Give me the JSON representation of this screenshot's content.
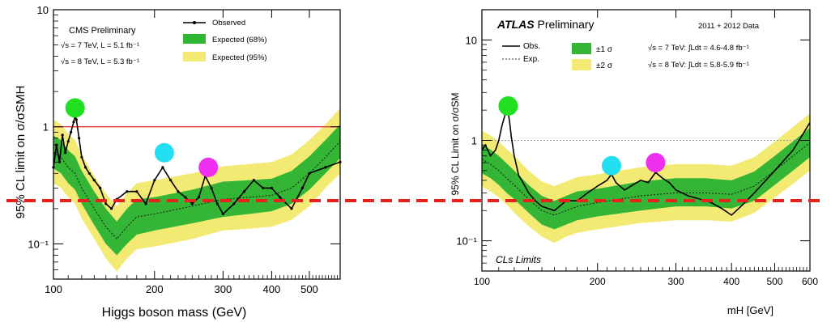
{
  "chart_data": [
    {
      "type": "line",
      "panel": "left",
      "header": "CMS Preliminary",
      "energy_lines": [
        "√s = 7 TeV, L = 5.1 fb⁻¹",
        "√s = 8 TeV, L = 5.3 fb⁻¹"
      ],
      "legend": [
        "Observed",
        "Expected (68%)",
        "Expected (95%)"
      ],
      "xlabel": "Higgs boson mass (GeV)",
      "ylabel": "95% CL limit on σ/σSMH",
      "x_scale": "log",
      "y_scale": "log",
      "xlim": [
        110,
        600
      ],
      "ylim": [
        0.05,
        10
      ],
      "x_ticks": [
        100,
        200,
        300,
        400,
        500
      ],
      "y_ticks": [
        {
          "v": 0.1,
          "label": "10⁻¹"
        },
        {
          "v": 1,
          "label": "1"
        },
        {
          "v": 10,
          "label": "10"
        }
      ],
      "reference_line": 1,
      "expected": {
        "x": [
          110,
          115,
          120,
          125,
          130,
          140,
          150,
          160,
          170,
          180,
          200,
          250,
          300,
          350,
          400,
          450,
          500,
          550,
          600
        ],
        "median": [
          0.6,
          0.55,
          0.45,
          0.4,
          0.3,
          0.2,
          0.14,
          0.11,
          0.14,
          0.17,
          0.18,
          0.21,
          0.24,
          0.25,
          0.26,
          0.3,
          0.4,
          0.55,
          0.75
        ],
        "lo1": [
          0.44,
          0.4,
          0.33,
          0.29,
          0.22,
          0.145,
          0.1,
          0.08,
          0.1,
          0.12,
          0.13,
          0.15,
          0.17,
          0.18,
          0.19,
          0.22,
          0.29,
          0.4,
          0.54
        ],
        "hi1": [
          0.84,
          0.77,
          0.63,
          0.56,
          0.42,
          0.28,
          0.2,
          0.155,
          0.2,
          0.24,
          0.25,
          0.29,
          0.34,
          0.35,
          0.36,
          0.42,
          0.56,
          0.77,
          1.05
        ],
        "lo2": [
          0.33,
          0.3,
          0.25,
          0.22,
          0.165,
          0.11,
          0.075,
          0.058,
          0.075,
          0.09,
          0.095,
          0.11,
          0.13,
          0.135,
          0.14,
          0.16,
          0.21,
          0.3,
          0.4
        ],
        "hi2": [
          1.15,
          1.05,
          0.87,
          0.77,
          0.58,
          0.38,
          0.27,
          0.21,
          0.27,
          0.33,
          0.35,
          0.4,
          0.46,
          0.48,
          0.5,
          0.58,
          0.77,
          1.05,
          1.45
        ]
      },
      "observed": {
        "x": [
          110,
          112,
          114,
          116,
          118,
          120,
          122,
          124,
          125,
          126,
          128,
          130,
          133,
          136,
          140,
          145,
          150,
          155,
          160,
          170,
          180,
          190,
          200,
          210,
          220,
          230,
          240,
          250,
          260,
          270,
          280,
          290,
          300,
          320,
          340,
          360,
          380,
          400,
          420,
          450,
          480,
          500,
          550,
          600
        ],
        "y": [
          0.45,
          0.7,
          0.5,
          0.85,
          0.6,
          0.75,
          0.9,
          1.1,
          1.25,
          1.15,
          0.8,
          0.55,
          0.45,
          0.4,
          0.35,
          0.3,
          0.22,
          0.2,
          0.24,
          0.28,
          0.28,
          0.22,
          0.35,
          0.45,
          0.35,
          0.28,
          0.25,
          0.22,
          0.25,
          0.38,
          0.3,
          0.22,
          0.18,
          0.22,
          0.28,
          0.35,
          0.3,
          0.3,
          0.25,
          0.2,
          0.3,
          0.4,
          0.45,
          0.5
        ]
      }
    },
    {
      "type": "line",
      "panel": "right",
      "header": "ATLAS Preliminary",
      "header_bold": "ATLAS",
      "header_rest": " Preliminary",
      "data_label": "2011 + 2012 Data",
      "energy_lines": [
        "√s = 7 TeV: ∫Ldt = 4.6-4.8 fb⁻¹",
        "√s = 8 TeV: ∫Ldt = 5.8-5.9 fb⁻¹"
      ],
      "legend": [
        "Obs.",
        "Exp.",
        "±1 σ",
        "±2 σ"
      ],
      "corner_label": "CLs Limits",
      "xlabel": "mH [GeV]",
      "ylabel": "95% CL Limit on σ/σSM",
      "x_scale": "log",
      "y_scale": "log",
      "xlim": [
        110,
        600
      ],
      "ylim": [
        0.05,
        20
      ],
      "x_ticks": [
        100,
        200,
        300,
        400,
        500,
        600
      ],
      "y_ticks": [
        {
          "v": 0.1,
          "label": "10⁻¹"
        },
        {
          "v": 1,
          "label": "1"
        },
        {
          "v": 10,
          "label": "10"
        }
      ],
      "reference_line": 1,
      "expected": {
        "x": [
          110,
          115,
          120,
          125,
          130,
          140,
          150,
          160,
          170,
          180,
          200,
          250,
          300,
          350,
          400,
          450,
          500,
          550,
          600
        ],
        "median": [
          0.65,
          0.58,
          0.5,
          0.42,
          0.36,
          0.26,
          0.2,
          0.18,
          0.2,
          0.22,
          0.24,
          0.28,
          0.3,
          0.3,
          0.29,
          0.35,
          0.5,
          0.7,
          0.95
        ],
        "lo1": [
          0.47,
          0.42,
          0.36,
          0.3,
          0.26,
          0.19,
          0.145,
          0.13,
          0.145,
          0.16,
          0.175,
          0.2,
          0.22,
          0.22,
          0.21,
          0.25,
          0.36,
          0.5,
          0.68
        ],
        "hi1": [
          0.9,
          0.81,
          0.7,
          0.59,
          0.5,
          0.36,
          0.28,
          0.25,
          0.28,
          0.31,
          0.33,
          0.39,
          0.42,
          0.42,
          0.4,
          0.49,
          0.7,
          0.98,
          1.33
        ],
        "lo2": [
          0.35,
          0.31,
          0.27,
          0.23,
          0.19,
          0.14,
          0.11,
          0.095,
          0.11,
          0.12,
          0.13,
          0.15,
          0.16,
          0.16,
          0.155,
          0.19,
          0.27,
          0.37,
          0.5
        ],
        "hi2": [
          1.25,
          1.12,
          0.97,
          0.82,
          0.7,
          0.5,
          0.39,
          0.35,
          0.39,
          0.43,
          0.46,
          0.54,
          0.58,
          0.58,
          0.56,
          0.68,
          0.97,
          1.36,
          1.85
        ]
      },
      "observed": {
        "x": [
          110,
          112,
          115,
          118,
          120,
          122,
          124,
          125,
          126,
          127,
          128,
          130,
          133,
          136,
          140,
          145,
          150,
          160,
          170,
          180,
          190,
          200,
          210,
          215,
          220,
          230,
          240,
          250,
          260,
          270,
          280,
          290,
          300,
          320,
          340,
          360,
          380,
          400,
          420,
          450,
          500,
          550,
          600
        ],
        "y": [
          0.8,
          0.9,
          0.7,
          0.8,
          1.0,
          1.4,
          1.8,
          2.1,
          1.9,
          1.5,
          1.1,
          0.7,
          0.45,
          0.38,
          0.3,
          0.25,
          0.22,
          0.2,
          0.25,
          0.25,
          0.3,
          0.35,
          0.4,
          0.46,
          0.38,
          0.32,
          0.36,
          0.4,
          0.38,
          0.48,
          0.42,
          0.38,
          0.32,
          0.28,
          0.26,
          0.24,
          0.21,
          0.18,
          0.22,
          0.3,
          0.5,
          0.8,
          1.5
        ]
      }
    }
  ],
  "annotations": {
    "dashed_line_color": "#e8231f",
    "markers": [
      {
        "panel": 0,
        "x": 125,
        "y": 1.45,
        "color": "#21e021"
      },
      {
        "panel": 0,
        "x": 212,
        "y": 0.6,
        "color": "#22dff2"
      },
      {
        "panel": 0,
        "x": 275,
        "y": 0.45,
        "color": "#ef2fef"
      },
      {
        "panel": 1,
        "x": 126,
        "y": 2.2,
        "color": "#21e021"
      },
      {
        "panel": 1,
        "x": 215,
        "y": 0.56,
        "color": "#22dff2"
      },
      {
        "panel": 1,
        "x": 270,
        "y": 0.6,
        "color": "#ef2fef"
      }
    ]
  },
  "colors": {
    "band68": "#35b536",
    "band95": "#f3ea73",
    "observed": "#000000",
    "expected": "#1a1a1a",
    "ref_left": "#e53935",
    "ref_right": "#999999"
  }
}
